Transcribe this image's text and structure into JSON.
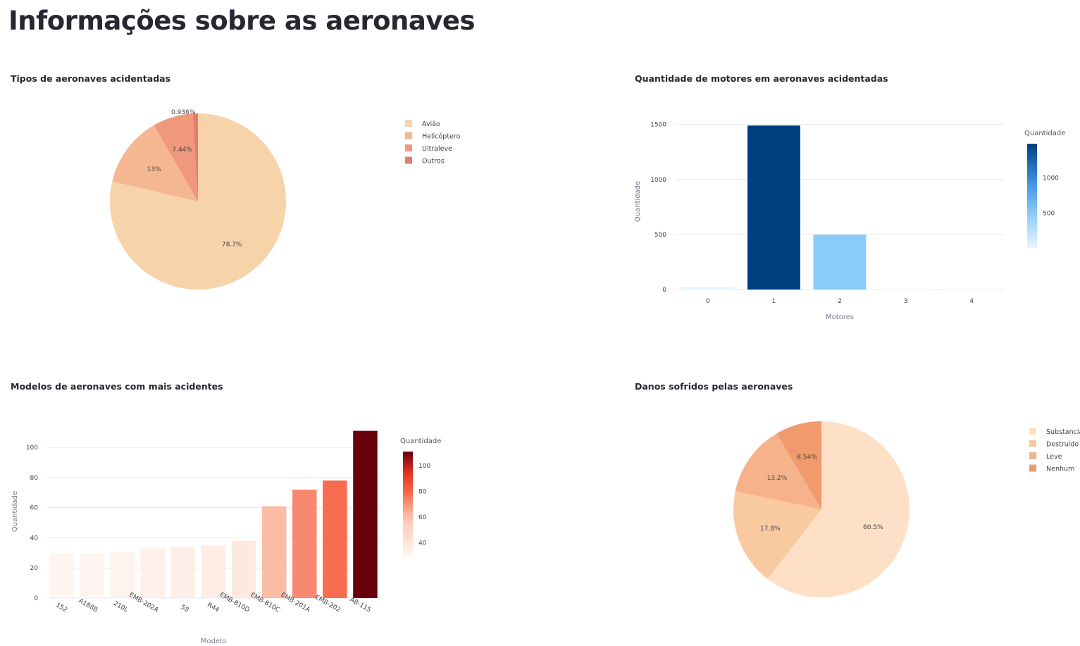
{
  "page": {
    "title": "Informações sobre as aeronaves"
  },
  "chart_data": [
    {
      "id": "tipos",
      "type": "pie",
      "title": "Tipos de aeronaves acidentadas",
      "labels": [
        "Avião",
        "Helicóptero",
        "Ultraleve",
        "Outros"
      ],
      "values": [
        78.7,
        13,
        7.44,
        0.936
      ],
      "text_labels": [
        "78.7%",
        "13%",
        "7.44%",
        "0.936%"
      ],
      "colors": {
        "Avião": "#f6d3a9",
        "Helicóptero": "#f5b791",
        "Ultraleve": "#f0987c",
        "Outros": "#e87a6f"
      },
      "legend": "top-right"
    },
    {
      "id": "motores",
      "type": "bar",
      "title": "Quantidade de motores em aeronaves acidentadas",
      "categories": [
        "0",
        "1",
        "2",
        "3",
        "4"
      ],
      "values": [
        25,
        1490,
        500,
        2,
        3
      ],
      "xlabel": "Motores",
      "ylabel": "Quantidade",
      "ylim": [
        0,
        1600
      ],
      "yticks": [
        0,
        500,
        1000,
        1500
      ],
      "grid": true,
      "colorscale": "Blues",
      "colorbar": {
        "title": "Quantidade",
        "ticks": [
          500,
          1000
        ]
      }
    },
    {
      "id": "modelos",
      "type": "bar",
      "title": "Modelos de aeronaves com mais acidentes",
      "categories": [
        "152",
        "A188B",
        "210L",
        "EMB-202A",
        "58",
        "R44",
        "EMB-810D",
        "EMB-810C",
        "EMB-201A",
        "EMB-202",
        "AB-115"
      ],
      "values": [
        30,
        30,
        31,
        33,
        34,
        35,
        38,
        61,
        72,
        78,
        111
      ],
      "xlabel": "Modelo",
      "ylabel": "Quantidade",
      "ylim": [
        0,
        115
      ],
      "yticks": [
        0,
        20,
        40,
        60,
        80,
        100
      ],
      "grid": true,
      "colorscale": "Reds",
      "colorbar": {
        "title": "Quantidade",
        "ticks": [
          40,
          60,
          80,
          100
        ]
      }
    },
    {
      "id": "danos",
      "type": "pie",
      "title": "Danos sofridos pelas aeronaves",
      "labels": [
        "Substancial",
        "Destruído",
        "Leve",
        "Nenhum"
      ],
      "values": [
        60.5,
        17.8,
        13.2,
        8.54
      ],
      "text_labels": [
        "60.5%",
        "17.8%",
        "13.2%",
        "8.54%"
      ],
      "colors": {
        "Substancial": "#fde0c5",
        "Destruído": "#f9c9a0",
        "Leve": "#f6b38b",
        "Nenhum": "#f19a6e"
      },
      "legend": "top-right"
    }
  ]
}
